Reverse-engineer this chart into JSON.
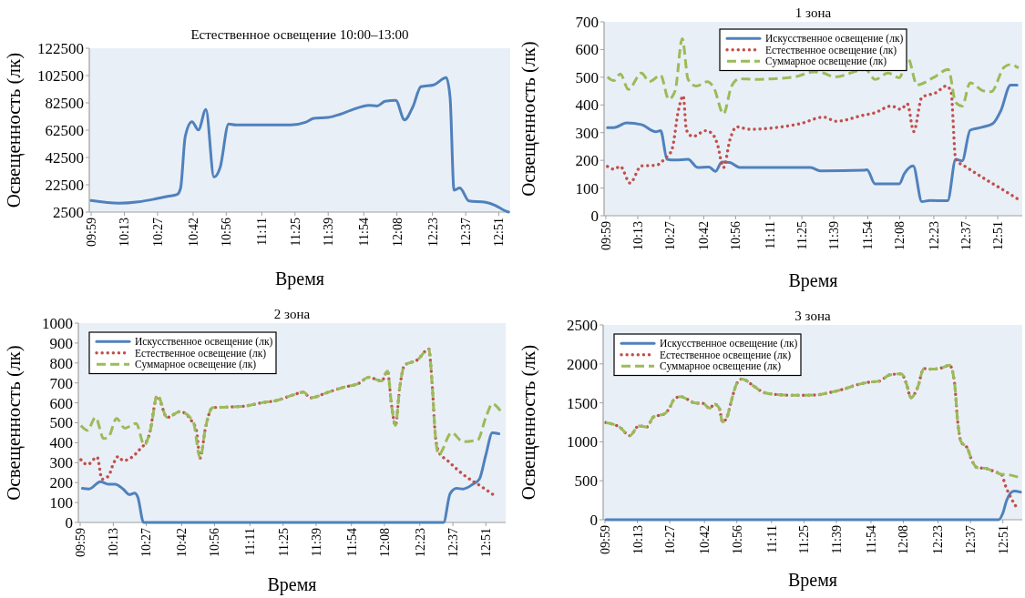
{
  "chart_data": [
    {
      "type": "line",
      "title": "Естественное освещение 10:00–13:00",
      "xlabel": "Время",
      "ylabel": "Освещенность (лк)",
      "legend": false,
      "grid": false,
      "xlim": [
        9.97,
        12.93
      ],
      "ylim": [
        2500,
        122500
      ],
      "yticks": [
        2500,
        22500,
        42500,
        62500,
        82500,
        102500,
        122500
      ],
      "xticks": [
        {
          "value": 9.983,
          "label": "09:59"
        },
        {
          "value": 10.217,
          "label": "10:13"
        },
        {
          "value": 10.45,
          "label": "10:27"
        },
        {
          "value": 10.7,
          "label": "10:42"
        },
        {
          "value": 10.933,
          "label": "10:56"
        },
        {
          "value": 11.183,
          "label": "11:11"
        },
        {
          "value": 11.417,
          "label": "11:25"
        },
        {
          "value": 11.65,
          "label": "11:39"
        },
        {
          "value": 11.9,
          "label": "11:54"
        },
        {
          "value": 12.133,
          "label": "12:08"
        },
        {
          "value": 12.383,
          "label": "12:23"
        },
        {
          "value": 12.617,
          "label": "12:37"
        },
        {
          "value": 12.85,
          "label": "12:51"
        }
      ],
      "series": [
        {
          "color": "#4f81bd",
          "line_style": "solid",
          "x": [
            9.983,
            10.177,
            10.315,
            10.428,
            10.52,
            10.588,
            10.612,
            10.645,
            10.692,
            10.737,
            10.79,
            10.847,
            10.89,
            10.95,
            11.0,
            11.388,
            11.49,
            11.548,
            11.65,
            11.73,
            11.81,
            11.937,
            11.993,
            12.05,
            12.125,
            12.187,
            12.245,
            12.302,
            12.393,
            12.48,
            12.507,
            12.535,
            12.575,
            12.64,
            12.758,
            12.827,
            12.883,
            12.918
          ],
          "values": [
            11000,
            9000,
            10000,
            12000,
            14000,
            15400,
            20000,
            58000,
            68700,
            62700,
            77600,
            28100,
            35200,
            67000,
            66300,
            66300,
            68200,
            71100,
            71800,
            74000,
            77100,
            80700,
            80200,
            83600,
            84300,
            70000,
            79500,
            94300,
            95700,
            101000,
            86600,
            18500,
            20200,
            10600,
            9700,
            7300,
            4000,
            2500
          ]
        }
      ]
    },
    {
      "type": "line",
      "title": "1 зона",
      "xlabel": "Время",
      "ylabel": "Освещенность (лк)",
      "legend": "top",
      "grid": false,
      "xlim": [
        9.97,
        13.03
      ],
      "ylim": [
        0,
        700
      ],
      "yticks": [
        0,
        100,
        200,
        300,
        400,
        500,
        600,
        700
      ],
      "xticks": [
        {
          "value": 9.983,
          "label": "09:59"
        },
        {
          "value": 10.217,
          "label": "10:13"
        },
        {
          "value": 10.45,
          "label": "10:27"
        },
        {
          "value": 10.7,
          "label": "10:42"
        },
        {
          "value": 10.933,
          "label": "10:56"
        },
        {
          "value": 11.183,
          "label": "11:11"
        },
        {
          "value": 11.417,
          "label": "11:25"
        },
        {
          "value": 11.65,
          "label": "11:39"
        },
        {
          "value": 11.9,
          "label": "11:54"
        },
        {
          "value": 12.133,
          "label": "12:08"
        },
        {
          "value": 12.383,
          "label": "12:23"
        },
        {
          "value": 12.617,
          "label": "12:37"
        },
        {
          "value": 12.85,
          "label": "12:51"
        }
      ],
      "series": [
        {
          "name": "Искусственное освещение (лк)",
          "color": "#4f81bd",
          "line_style": "solid",
          "x": [
            9.995,
            10.042,
            10.136,
            10.243,
            10.349,
            10.384,
            10.431,
            10.49,
            10.585,
            10.655,
            10.738,
            10.785,
            10.832,
            10.891,
            10.962,
            11.481,
            11.552,
            11.871,
            11.894,
            11.953,
            12.13,
            12.166,
            12.232,
            12.295,
            12.354,
            12.484,
            12.543,
            12.59,
            12.649,
            12.732,
            12.815,
            12.874,
            12.944,
            12.992
          ],
          "values": [
            318,
            318,
            335,
            329,
            303,
            307,
            204,
            201,
            204,
            174,
            176,
            160,
            194,
            192,
            174,
            174,
            162,
            164,
            166,
            115,
            115,
            151,
            180,
            51,
            55,
            54,
            204,
            198,
            309,
            319,
            333,
            380,
            472,
            472
          ]
        },
        {
          "name": "Естественное освещение (лк)",
          "color": "#c0504d",
          "line_style": "dotted",
          "x": [
            9.995,
            10.042,
            10.089,
            10.16,
            10.243,
            10.349,
            10.42,
            10.467,
            10.514,
            10.549,
            10.573,
            10.62,
            10.714,
            10.762,
            10.797,
            10.844,
            10.891,
            10.939,
            11.033,
            11.222,
            11.411,
            11.576,
            11.67,
            11.859,
            11.953,
            12.071,
            12.142,
            12.189,
            12.236,
            12.295,
            12.402,
            12.472,
            12.508,
            12.543,
            12.626,
            12.756,
            12.874,
            12.992
          ],
          "values": [
            178,
            168,
            178,
            118,
            180,
            182,
            209,
            239,
            380,
            433,
            309,
            286,
            307,
            296,
            262,
            174,
            274,
            321,
            312,
            318,
            333,
            356,
            341,
            362,
            372,
            396,
            384,
            404,
            304,
            427,
            445,
            468,
            451,
            204,
            174,
            133,
            98,
            62
          ]
        },
        {
          "name": "Суммарное освещение (лк)",
          "color": "#9bbb59",
          "line_style": "dashed",
          "x": [
            9.995,
            10.042,
            10.089,
            10.148,
            10.243,
            10.302,
            10.384,
            10.443,
            10.49,
            10.542,
            10.585,
            10.644,
            10.726,
            10.773,
            10.844,
            10.903,
            10.962,
            11.08,
            11.222,
            11.363,
            11.505,
            11.576,
            11.658,
            11.882,
            11.953,
            12.048,
            12.13,
            12.194,
            12.26,
            12.378,
            12.489,
            12.543,
            12.59,
            12.649,
            12.744,
            12.803,
            12.897,
            12.944,
            13.003
          ],
          "values": [
            501,
            488,
            512,
            456,
            515,
            484,
            507,
            421,
            451,
            639,
            492,
            468,
            484,
            462,
            368,
            468,
            495,
            492,
            495,
            501,
            519,
            515,
            501,
            528,
            492,
            515,
            498,
            568,
            472,
            498,
            528,
            409,
            396,
            480,
            451,
            448,
            536,
            546,
            533
          ]
        }
      ]
    },
    {
      "type": "line",
      "title": "2 зона",
      "xlabel": "Время",
      "ylabel": "Освещенность (лк)",
      "legend": "top left",
      "grid": false,
      "xlim": [
        9.97,
        12.99
      ],
      "ylim": [
        0,
        1000
      ],
      "yticks": [
        0,
        100,
        200,
        300,
        400,
        500,
        600,
        700,
        800,
        900,
        1000
      ],
      "xticks": [
        {
          "value": 9.983,
          "label": "09:59"
        },
        {
          "value": 10.217,
          "label": "10:13"
        },
        {
          "value": 10.45,
          "label": "10:27"
        },
        {
          "value": 10.7,
          "label": "10:42"
        },
        {
          "value": 10.933,
          "label": "10:56"
        },
        {
          "value": 11.183,
          "label": "11:11"
        },
        {
          "value": 11.417,
          "label": "11:25"
        },
        {
          "value": 11.65,
          "label": "11:39"
        },
        {
          "value": 11.9,
          "label": "11:54"
        },
        {
          "value": 12.133,
          "label": "12:08"
        },
        {
          "value": 12.383,
          "label": "12:23"
        },
        {
          "value": 12.617,
          "label": "12:37"
        },
        {
          "value": 12.85,
          "label": "12:51"
        }
      ],
      "series": [
        {
          "name": "Искусственное освещение (лк)",
          "color": "#4f81bd",
          "line_style": "solid",
          "x": [
            9.999,
            10.045,
            10.126,
            10.183,
            10.229,
            10.286,
            10.332,
            10.367,
            10.39,
            10.431,
            12.551,
            12.597,
            12.643,
            12.689,
            12.758,
            12.804,
            12.85,
            12.896,
            12.942
          ],
          "values": [
            171,
            168,
            204,
            192,
            192,
            168,
            140,
            147,
            127,
            0,
            0,
            144,
            171,
            168,
            192,
            217,
            339,
            450,
            445
          ]
        },
        {
          "name": "Естественное освещение (лк)",
          "color": "#c0504d",
          "line_style": "dotted",
          "x": [
            9.988,
            10.034,
            10.103,
            10.137,
            10.183,
            10.217,
            10.252,
            10.286,
            10.401,
            10.47,
            10.528,
            10.597,
            10.689,
            10.769,
            10.804,
            10.831,
            10.868,
            10.919,
            11.034,
            11.149,
            11.263,
            11.378,
            11.493,
            11.562,
            11.608,
            11.723,
            11.838,
            11.953,
            12.022,
            12.114,
            12.155,
            12.183,
            12.211,
            12.24,
            12.275,
            12.367,
            12.447,
            12.47,
            12.493,
            12.516,
            12.585,
            12.689,
            12.827,
            12.919
          ],
          "values": [
            315,
            290,
            328,
            217,
            233,
            294,
            331,
            310,
            364,
            437,
            633,
            527,
            556,
            511,
            462,
            323,
            473,
            576,
            579,
            584,
            600,
            613,
            641,
            654,
            625,
            650,
            677,
            698,
            728,
            710,
            759,
            592,
            486,
            669,
            788,
            816,
            870,
            698,
            437,
            356,
            307,
            241,
            176,
            131
          ]
        },
        {
          "name": "Суммарное освещение (лк)",
          "color": "#9bbb59",
          "line_style": "dashed",
          "x": [
            9.988,
            10.034,
            10.091,
            10.149,
            10.183,
            10.24,
            10.298,
            10.378,
            10.436,
            10.482,
            10.528,
            10.597,
            10.689,
            10.781,
            10.831,
            10.868,
            10.919,
            11.034,
            11.149,
            11.263,
            11.378,
            11.493,
            11.562,
            11.608,
            11.723,
            11.838,
            11.953,
            12.022,
            12.114,
            12.155,
            12.183,
            12.211,
            12.24,
            12.275,
            12.367,
            12.447,
            12.47,
            12.493,
            12.516,
            12.608,
            12.689,
            12.792,
            12.85,
            12.896,
            12.953
          ],
          "values": [
            486,
            462,
            527,
            421,
            429,
            522,
            473,
            497,
            388,
            473,
            641,
            527,
            556,
            507,
            323,
            473,
            576,
            579,
            584,
            600,
            613,
            641,
            654,
            625,
            650,
            677,
            698,
            728,
            710,
            759,
            592,
            486,
            669,
            788,
            816,
            870,
            698,
            437,
            340,
            450,
            405,
            414,
            527,
            595,
            560
          ]
        }
      ]
    },
    {
      "type": "line",
      "title": "3 зона",
      "xlabel": "Время",
      "ylabel": "Освещенность (лк)",
      "legend": "top left",
      "grid": false,
      "xlim": [
        9.97,
        12.99
      ],
      "ylim": [
        0,
        2500
      ],
      "yticks": [
        0,
        500,
        1000,
        1500,
        2000,
        2500
      ],
      "xticks": [
        {
          "value": 9.983,
          "label": "09:59"
        },
        {
          "value": 10.217,
          "label": "10:13"
        },
        {
          "value": 10.45,
          "label": "10:27"
        },
        {
          "value": 10.7,
          "label": "10:42"
        },
        {
          "value": 10.933,
          "label": "10:56"
        },
        {
          "value": 11.183,
          "label": "11:11"
        },
        {
          "value": 11.417,
          "label": "11:25"
        },
        {
          "value": 11.65,
          "label": "11:39"
        },
        {
          "value": 11.9,
          "label": "11:54"
        },
        {
          "value": 12.133,
          "label": "12:08"
        },
        {
          "value": 12.383,
          "label": "12:23"
        },
        {
          "value": 12.617,
          "label": "12:37"
        },
        {
          "value": 12.85,
          "label": "12:51"
        }
      ],
      "series": [
        {
          "name": "Искусственное освещение (лк)",
          "color": "#4f81bd",
          "line_style": "solid",
          "x": [
            9.99,
            12.803,
            12.82,
            12.85,
            12.878,
            12.931,
            12.977
          ],
          "values": [
            0,
            0,
            0,
            84,
            251,
            368,
            355
          ]
        },
        {
          "name": "Естественное освещение (лк)",
          "color": "#c0504d",
          "line_style": "dotted",
          "x": [
            9.99,
            10.041,
            10.087,
            10.162,
            10.227,
            10.285,
            10.331,
            10.412,
            10.447,
            10.482,
            10.528,
            10.575,
            10.633,
            10.691,
            10.737,
            10.772,
            10.807,
            10.83,
            10.865,
            10.888,
            10.935,
            10.97,
            11.062,
            11.132,
            11.271,
            11.364,
            11.503,
            11.596,
            11.712,
            11.805,
            11.898,
            11.956,
            12.037,
            12.119,
            12.153,
            12.188,
            12.235,
            12.281,
            12.339,
            12.409,
            12.467,
            12.502,
            12.525,
            12.548,
            12.594,
            12.629,
            12.664,
            12.734,
            12.792,
            12.838,
            12.873,
            12.896,
            12.931,
            12.954
          ],
          "values": [
            1246,
            1225,
            1191,
            1079,
            1204,
            1191,
            1317,
            1359,
            1430,
            1547,
            1580,
            1547,
            1497,
            1492,
            1430,
            1484,
            1430,
            1254,
            1329,
            1484,
            1756,
            1806,
            1706,
            1630,
            1601,
            1597,
            1601,
            1630,
            1681,
            1735,
            1768,
            1777,
            1860,
            1873,
            1756,
            1568,
            1693,
            1940,
            1932,
            1949,
            1982,
            1756,
            1254,
            1003,
            920,
            753,
            669,
            656,
            615,
            585,
            418,
            326,
            209,
            146
          ]
        },
        {
          "name": "Суммарное освещение (лк)",
          "color": "#9bbb59",
          "line_style": "dashed",
          "x": [
            9.99,
            10.041,
            10.087,
            10.162,
            10.227,
            10.285,
            10.331,
            10.412,
            10.447,
            10.482,
            10.528,
            10.575,
            10.633,
            10.691,
            10.737,
            10.772,
            10.807,
            10.83,
            10.865,
            10.888,
            10.935,
            10.97,
            11.062,
            11.132,
            11.271,
            11.364,
            11.503,
            11.596,
            11.712,
            11.805,
            11.898,
            11.956,
            12.037,
            12.119,
            12.153,
            12.188,
            12.235,
            12.281,
            12.339,
            12.409,
            12.467,
            12.502,
            12.525,
            12.548,
            12.594,
            12.629,
            12.664,
            12.734,
            12.792,
            12.838,
            12.896,
            12.966
          ],
          "values": [
            1246,
            1225,
            1191,
            1079,
            1204,
            1191,
            1317,
            1359,
            1430,
            1547,
            1580,
            1547,
            1497,
            1492,
            1430,
            1484,
            1430,
            1254,
            1329,
            1484,
            1756,
            1806,
            1706,
            1630,
            1601,
            1597,
            1601,
            1630,
            1681,
            1735,
            1768,
            1777,
            1860,
            1873,
            1756,
            1568,
            1693,
            1940,
            1932,
            1949,
            1982,
            1756,
            1254,
            1003,
            920,
            753,
            669,
            656,
            615,
            585,
            577,
            543
          ]
        }
      ]
    }
  ]
}
